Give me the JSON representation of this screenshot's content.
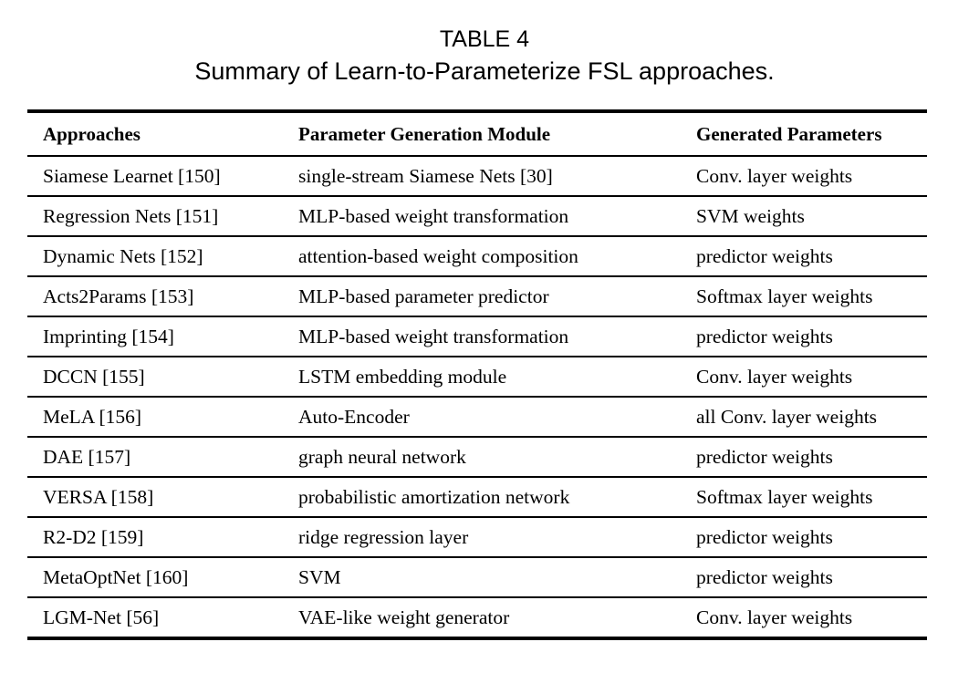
{
  "title": {
    "label": "TABLE 4",
    "caption": "Summary of Learn-to-Parameterize FSL approaches."
  },
  "table": {
    "columns": [
      "Approaches",
      "Parameter Generation Module",
      "Generated Parameters"
    ],
    "rows": [
      [
        "Siamese Learnet [150]",
        "single-stream Siamese Nets [30]",
        "Conv. layer weights"
      ],
      [
        "Regression Nets [151]",
        "MLP-based weight transformation",
        "SVM weights"
      ],
      [
        "Dynamic Nets [152]",
        "attention-based weight composition",
        "predictor weights"
      ],
      [
        "Acts2Params [153]",
        "MLP-based parameter predictor",
        "Softmax layer weights"
      ],
      [
        "Imprinting [154]",
        "MLP-based weight transformation",
        "predictor weights"
      ],
      [
        "DCCN [155]",
        "LSTM embedding module",
        "Conv. layer weights"
      ],
      [
        "MeLA [156]",
        "Auto-Encoder",
        "all Conv. layer weights"
      ],
      [
        "DAE [157]",
        "graph neural network",
        "predictor weights"
      ],
      [
        "VERSA [158]",
        "probabilistic amortization network",
        "Softmax layer weights"
      ],
      [
        "R2-D2 [159]",
        "ridge regression layer",
        "predictor weights"
      ],
      [
        "MetaOptNet [160]",
        "SVM",
        "predictor weights"
      ],
      [
        "LGM-Net [56]",
        "VAE-like weight generator",
        "Conv. layer weights"
      ]
    ]
  },
  "colors": {
    "background": "#ffffff",
    "text": "#000000",
    "rule": "#000000"
  }
}
